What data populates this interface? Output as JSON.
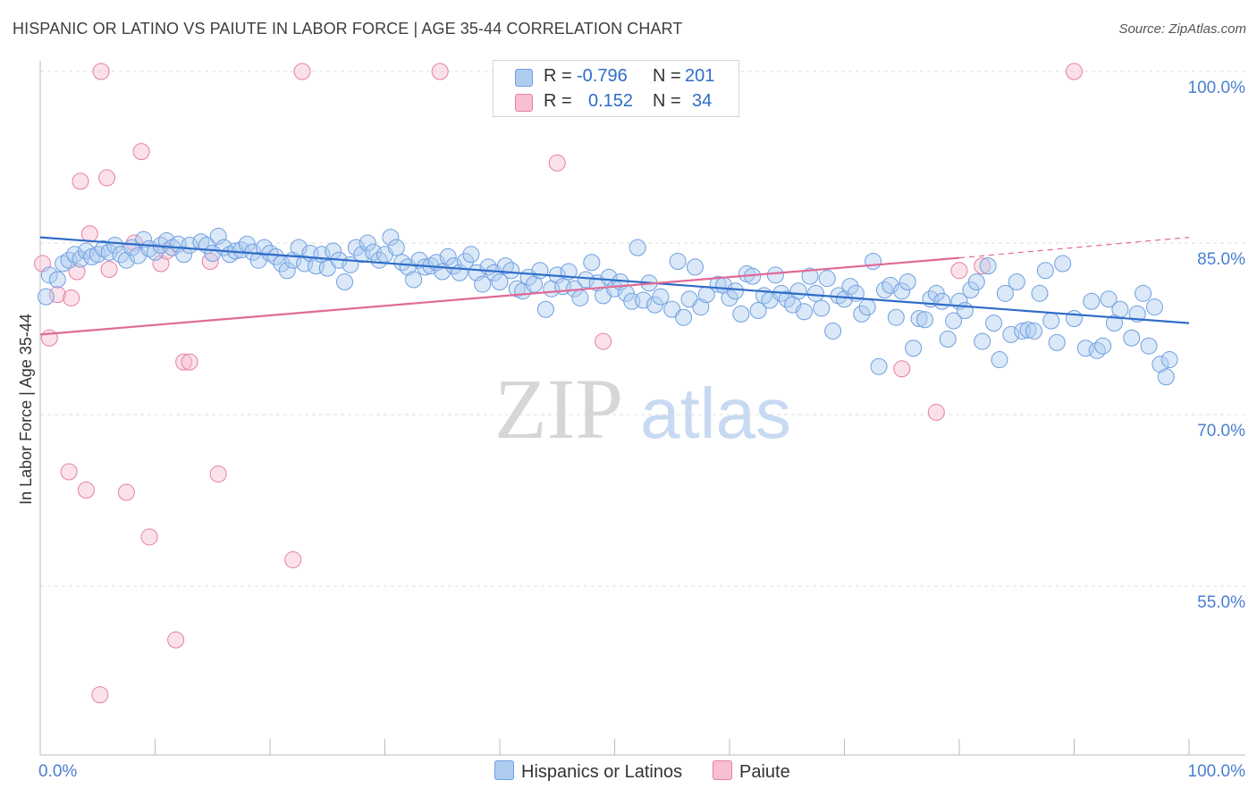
{
  "title": "HISPANIC OR LATINO VS PAIUTE IN LABOR FORCE | AGE 35-44 CORRELATION CHART",
  "source": "Source: ZipAtlas.com",
  "watermark": {
    "zip": "ZIP",
    "atlas": "atlas"
  },
  "legend": {
    "r_label": "R =",
    "n_label": "N =",
    "rows": [
      {
        "r": "-0.796",
        "n": "201",
        "color": "#6f9fe0",
        "fill": "#aecbf0"
      },
      {
        "r": "0.152",
        "n": "34",
        "color": "#e57fa3",
        "fill": "#f7bfd0"
      }
    ]
  },
  "bottom_legend": [
    "Hispanics or Latinos",
    "Paiute"
  ],
  "chart_data": {
    "type": "scatter",
    "title": "HISPANIC OR LATINO VS PAIUTE IN LABOR FORCE | AGE 35-44 CORRELATION CHART",
    "xlabel": "",
    "ylabel": "In Labor Force | Age 35-44",
    "xlim": [
      0,
      100
    ],
    "ylim": [
      40,
      102
    ],
    "x_tick_labels": [
      "0.0%",
      "100.0%"
    ],
    "y_ticks": [
      100,
      85,
      70,
      55
    ],
    "y_tick_labels": [
      "100.0%",
      "85.0%",
      "70.0%",
      "55.0%"
    ],
    "grid": "horizontal dashed",
    "colors": {
      "blue": "#2f6cc7",
      "pink": "#e06a97",
      "tick_text": "#4a7fd0"
    },
    "series": [
      {
        "name": "Hispanics or Latinos",
        "R": -0.796,
        "N": 201,
        "trend": {
          "x0": 0,
          "y0": 85.5,
          "x1": 100,
          "y1": 78.0
        },
        "points": [
          [
            0.5,
            80.3
          ],
          [
            0.8,
            82.2
          ],
          [
            1.5,
            81.8
          ],
          [
            2,
            83.2
          ],
          [
            2.5,
            83.5
          ],
          [
            3,
            84.0
          ],
          [
            3.5,
            83.6
          ],
          [
            4,
            84.3
          ],
          [
            4.5,
            83.8
          ],
          [
            5,
            84.0
          ],
          [
            5.5,
            84.5
          ],
          [
            6,
            84.2
          ],
          [
            6.5,
            84.8
          ],
          [
            7,
            84.0
          ],
          [
            7.5,
            83.5
          ],
          [
            8,
            84.6
          ],
          [
            8.5,
            83.9
          ],
          [
            9,
            85.3
          ],
          [
            9.5,
            84.5
          ],
          [
            10,
            84.2
          ],
          [
            10.5,
            84.8
          ],
          [
            11,
            85.2
          ],
          [
            11.5,
            84.6
          ],
          [
            12,
            84.9
          ],
          [
            12.5,
            84.0
          ],
          [
            13,
            84.8
          ],
          [
            14,
            85.1
          ],
          [
            14.5,
            84.8
          ],
          [
            15,
            84.1
          ],
          [
            15.5,
            85.6
          ],
          [
            16,
            84.6
          ],
          [
            16.5,
            84.0
          ],
          [
            17,
            84.3
          ],
          [
            17.5,
            84.4
          ],
          [
            18,
            84.9
          ],
          [
            18.5,
            84.2
          ],
          [
            19,
            83.5
          ],
          [
            19.5,
            84.6
          ],
          [
            20,
            84.1
          ],
          [
            20.5,
            83.8
          ],
          [
            21,
            83.2
          ],
          [
            21.5,
            82.6
          ],
          [
            22,
            83.5
          ],
          [
            22.5,
            84.6
          ],
          [
            23,
            83.2
          ],
          [
            23.5,
            84.1
          ],
          [
            24,
            83.0
          ],
          [
            24.5,
            84.0
          ],
          [
            25,
            82.8
          ],
          [
            25.5,
            84.3
          ],
          [
            26,
            83.5
          ],
          [
            26.5,
            81.6
          ],
          [
            27,
            83.1
          ],
          [
            27.5,
            84.6
          ],
          [
            28,
            84.0
          ],
          [
            28.5,
            85.0
          ],
          [
            29,
            84.2
          ],
          [
            29.5,
            83.5
          ],
          [
            30,
            84.0
          ],
          [
            30.5,
            85.5
          ],
          [
            31,
            84.6
          ],
          [
            31.5,
            83.3
          ],
          [
            32,
            82.9
          ],
          [
            32.5,
            81.8
          ],
          [
            33,
            83.5
          ],
          [
            33.5,
            82.9
          ],
          [
            34,
            83.0
          ],
          [
            34.5,
            83.3
          ],
          [
            35,
            82.5
          ],
          [
            35.5,
            83.8
          ],
          [
            36,
            83.0
          ],
          [
            36.5,
            82.4
          ],
          [
            37,
            83.4
          ],
          [
            37.5,
            84.0
          ],
          [
            38,
            82.4
          ],
          [
            38.5,
            81.4
          ],
          [
            39,
            82.9
          ],
          [
            39.5,
            82.4
          ],
          [
            40,
            81.6
          ],
          [
            40.5,
            83.0
          ],
          [
            41,
            82.6
          ],
          [
            41.5,
            81.0
          ],
          [
            42,
            80.8
          ],
          [
            42.5,
            82.0
          ],
          [
            43,
            81.4
          ],
          [
            43.5,
            82.6
          ],
          [
            44,
            79.2
          ],
          [
            44.5,
            81.0
          ],
          [
            45,
            82.2
          ],
          [
            45.5,
            81.2
          ],
          [
            46,
            82.5
          ],
          [
            46.5,
            81.0
          ],
          [
            47,
            80.2
          ],
          [
            47.5,
            81.8
          ],
          [
            48,
            83.3
          ],
          [
            48.5,
            81.5
          ],
          [
            49,
            80.4
          ],
          [
            49.5,
            82.0
          ],
          [
            50,
            81.0
          ],
          [
            50.5,
            81.6
          ],
          [
            51,
            80.6
          ],
          [
            51.5,
            79.9
          ],
          [
            52,
            84.6
          ],
          [
            52.5,
            80.0
          ],
          [
            53,
            81.5
          ],
          [
            53.5,
            79.6
          ],
          [
            54,
            80.3
          ],
          [
            55,
            79.2
          ],
          [
            55.5,
            83.4
          ],
          [
            56,
            78.5
          ],
          [
            56.5,
            80.1
          ],
          [
            57,
            82.9
          ],
          [
            57.5,
            79.4
          ],
          [
            58,
            80.5
          ],
          [
            59,
            81.4
          ],
          [
            59.5,
            81.3
          ],
          [
            60,
            80.2
          ],
          [
            60.5,
            80.8
          ],
          [
            61,
            78.8
          ],
          [
            61.5,
            82.3
          ],
          [
            62,
            82.1
          ],
          [
            62.5,
            79.1
          ],
          [
            63,
            80.4
          ],
          [
            63.5,
            80.0
          ],
          [
            64,
            82.2
          ],
          [
            64.5,
            80.6
          ],
          [
            65,
            80.1
          ],
          [
            65.5,
            79.6
          ],
          [
            66,
            80.8
          ],
          [
            66.5,
            79.0
          ],
          [
            67,
            82.1
          ],
          [
            67.5,
            80.6
          ],
          [
            68,
            79.3
          ],
          [
            68.5,
            81.9
          ],
          [
            69,
            77.3
          ],
          [
            69.5,
            80.4
          ],
          [
            70,
            80.1
          ],
          [
            70.5,
            81.2
          ],
          [
            71,
            80.6
          ],
          [
            71.5,
            78.8
          ],
          [
            72,
            79.4
          ],
          [
            72.5,
            83.4
          ],
          [
            73,
            74.2
          ],
          [
            73.5,
            80.9
          ],
          [
            74,
            81.3
          ],
          [
            74.5,
            78.5
          ],
          [
            75,
            80.8
          ],
          [
            75.5,
            81.6
          ],
          [
            76,
            75.8
          ],
          [
            76.5,
            78.4
          ],
          [
            77,
            78.3
          ],
          [
            77.5,
            80.1
          ],
          [
            78,
            80.6
          ],
          [
            78.5,
            79.9
          ],
          [
            79,
            76.6
          ],
          [
            79.5,
            78.2
          ],
          [
            80,
            79.9
          ],
          [
            80.5,
            79.1
          ],
          [
            81,
            80.9
          ],
          [
            81.5,
            81.6
          ],
          [
            82,
            76.4
          ],
          [
            82.5,
            83.0
          ],
          [
            83,
            78.0
          ],
          [
            83.5,
            74.8
          ],
          [
            84,
            80.6
          ],
          [
            84.5,
            77.0
          ],
          [
            85,
            81.6
          ],
          [
            85.5,
            77.3
          ],
          [
            86,
            77.4
          ],
          [
            86.5,
            77.3
          ],
          [
            87,
            80.6
          ],
          [
            87.5,
            82.6
          ],
          [
            88,
            78.2
          ],
          [
            88.5,
            76.3
          ],
          [
            89,
            83.2
          ],
          [
            90,
            78.4
          ],
          [
            91,
            75.8
          ],
          [
            91.5,
            79.9
          ],
          [
            92,
            75.6
          ],
          [
            92.5,
            76.0
          ],
          [
            93,
            80.1
          ],
          [
            93.5,
            78.0
          ],
          [
            94,
            79.2
          ],
          [
            95,
            76.7
          ],
          [
            95.5,
            78.8
          ],
          [
            96,
            80.6
          ],
          [
            96.5,
            76.0
          ],
          [
            97,
            79.4
          ],
          [
            97.5,
            74.4
          ],
          [
            98,
            73.3
          ],
          [
            98.3,
            74.8
          ]
        ]
      },
      {
        "name": "Paiute",
        "R": 0.152,
        "N": 34,
        "trend": {
          "x0": 0,
          "y0": 77.0,
          "x1": 80,
          "y1": 83.7,
          "dashed_to": {
            "x": 100,
            "y": 85.5
          }
        },
        "points": [
          [
            0.2,
            83.2
          ],
          [
            0.8,
            76.7
          ],
          [
            1.5,
            80.5
          ],
          [
            2.5,
            65.0
          ],
          [
            2.7,
            80.2
          ],
          [
            3.2,
            82.5
          ],
          [
            3.5,
            90.4
          ],
          [
            4,
            63.4
          ],
          [
            4.3,
            85.8
          ],
          [
            5.2,
            45.5
          ],
          [
            5.3,
            100.0
          ],
          [
            5.8,
            90.7
          ],
          [
            6,
            82.7
          ],
          [
            7.5,
            63.2
          ],
          [
            8.2,
            85.0
          ],
          [
            8.8,
            93.0
          ],
          [
            9.5,
            59.3
          ],
          [
            10.5,
            83.2
          ],
          [
            11,
            84.3
          ],
          [
            11.8,
            50.3
          ],
          [
            12.5,
            74.6
          ],
          [
            13,
            74.6
          ],
          [
            14.8,
            83.4
          ],
          [
            15.5,
            64.8
          ],
          [
            22,
            57.3
          ],
          [
            22.8,
            100.0
          ],
          [
            34.8,
            100.0
          ],
          [
            45,
            92.0
          ],
          [
            49,
            76.4
          ],
          [
            75,
            74.0
          ],
          [
            78,
            70.2
          ],
          [
            80,
            82.6
          ],
          [
            82,
            83.0
          ],
          [
            90,
            100.0
          ]
        ]
      }
    ]
  }
}
